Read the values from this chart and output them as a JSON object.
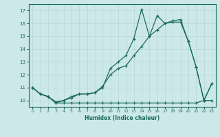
{
  "xlabel": "Humidex (Indice chaleur)",
  "xlim": [
    -0.5,
    23.5
  ],
  "ylim": [
    9.5,
    17.5
  ],
  "xticks": [
    0,
    1,
    2,
    3,
    4,
    5,
    6,
    7,
    8,
    9,
    10,
    11,
    12,
    13,
    14,
    15,
    16,
    17,
    18,
    19,
    20,
    21,
    22,
    23
  ],
  "yticks": [
    10,
    11,
    12,
    13,
    14,
    15,
    16,
    17
  ],
  "bg_color": "#cce8e8",
  "line_color": "#1a6b5a",
  "grid_color": "#b8d8d8",
  "line1_x": [
    0,
    1,
    2,
    3,
    4,
    5,
    6,
    7,
    8,
    9,
    10,
    11,
    12,
    13,
    14,
    15,
    16,
    17,
    18,
    19,
    20,
    21,
    22,
    23
  ],
  "line1_y": [
    11.0,
    10.5,
    10.3,
    9.8,
    10.0,
    10.2,
    10.5,
    10.5,
    10.6,
    11.0,
    12.5,
    13.0,
    13.5,
    14.8,
    17.1,
    15.0,
    16.6,
    16.0,
    16.1,
    16.1,
    14.6,
    12.6,
    10.0,
    11.3
  ],
  "line2_x": [
    0,
    1,
    2,
    3,
    4,
    5,
    6,
    7,
    8,
    9,
    10,
    11,
    12,
    13,
    14,
    15,
    16,
    17,
    18,
    19,
    20,
    21,
    22,
    23
  ],
  "line2_y": [
    11.0,
    10.5,
    10.3,
    9.8,
    9.8,
    9.8,
    9.8,
    9.8,
    9.8,
    9.8,
    9.8,
    9.8,
    9.8,
    9.8,
    9.8,
    9.8,
    9.8,
    9.8,
    9.8,
    9.8,
    9.8,
    9.8,
    10.0,
    10.0
  ],
  "line3_x": [
    0,
    1,
    2,
    3,
    4,
    5,
    6,
    7,
    8,
    9,
    10,
    11,
    12,
    13,
    14,
    15,
    16,
    17,
    18,
    19,
    20,
    21,
    22,
    23
  ],
  "line3_y": [
    11.0,
    10.5,
    10.3,
    9.9,
    10.0,
    10.3,
    10.5,
    10.5,
    10.6,
    11.1,
    12.0,
    12.5,
    12.7,
    13.5,
    14.2,
    15.0,
    15.5,
    16.0,
    16.2,
    16.3,
    14.6,
    12.6,
    10.0,
    11.3
  ]
}
